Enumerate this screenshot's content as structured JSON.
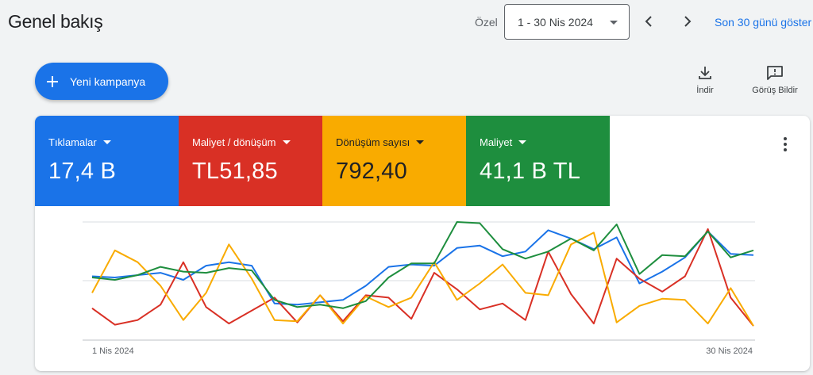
{
  "header": {
    "title": "Genel bakış",
    "date_mode": "Özel",
    "date_range": "1 - 30 Nis 2024",
    "show_last_link": "Son 30 günü göster"
  },
  "actions": {
    "new_campaign": "Yeni kampanya",
    "download": "İndir",
    "feedback": "Görüş Bildir"
  },
  "metrics": [
    {
      "label": "Tıklamalar",
      "value": "17,4 B",
      "color": "#1a73e8"
    },
    {
      "label": "Maliyet / dönüşüm",
      "value": "TL51,85",
      "color": "#d93025"
    },
    {
      "label": "Dönüşüm sayısı",
      "value": "792,40",
      "color": "#f9ab00"
    },
    {
      "label": "Maliyet",
      "value": "41,1 B TL",
      "color": "#1e8e3e"
    }
  ],
  "chart_data": {
    "type": "line",
    "x_start_label": "1 Nis 2024",
    "x_end_label": "30 Nis 2024",
    "x": [
      1,
      2,
      3,
      4,
      5,
      6,
      7,
      8,
      9,
      10,
      11,
      12,
      13,
      14,
      15,
      16,
      17,
      18,
      19,
      20,
      21,
      22,
      23,
      24,
      25,
      26,
      27,
      28,
      29,
      30
    ],
    "ylim": [
      0,
      100
    ],
    "grid": true,
    "series": [
      {
        "color": "#1a73e8",
        "values": [
          54,
          53,
          55,
          57,
          51,
          63,
          66,
          63,
          31,
          30,
          32,
          34,
          46,
          62,
          64,
          63,
          78,
          80,
          71,
          75,
          93,
          86,
          77,
          87,
          48,
          58,
          70,
          92,
          73,
          72
        ]
      },
      {
        "color": "#d93025",
        "values": [
          27,
          13,
          17,
          30,
          66,
          28,
          14,
          25,
          36,
          15,
          38,
          16,
          38,
          36,
          18,
          57,
          43,
          26,
          31,
          17,
          75,
          39,
          14,
          69,
          52,
          41,
          54,
          94,
          36,
          12
        ]
      },
      {
        "color": "#f9ab00",
        "values": [
          40,
          76,
          66,
          46,
          17,
          40,
          81,
          52,
          17,
          16,
          38,
          14,
          37,
          28,
          36,
          66,
          34,
          48,
          64,
          40,
          38,
          81,
          91,
          15,
          29,
          35,
          34,
          14,
          44,
          12
        ]
      },
      {
        "color": "#1e8e3e",
        "values": [
          53,
          51,
          55,
          62,
          58,
          57,
          61,
          59,
          34,
          28,
          30,
          27,
          33,
          53,
          65,
          65,
          100,
          99,
          77,
          69,
          75,
          86,
          76,
          98,
          56,
          72,
          71,
          92,
          70,
          76
        ]
      }
    ]
  }
}
